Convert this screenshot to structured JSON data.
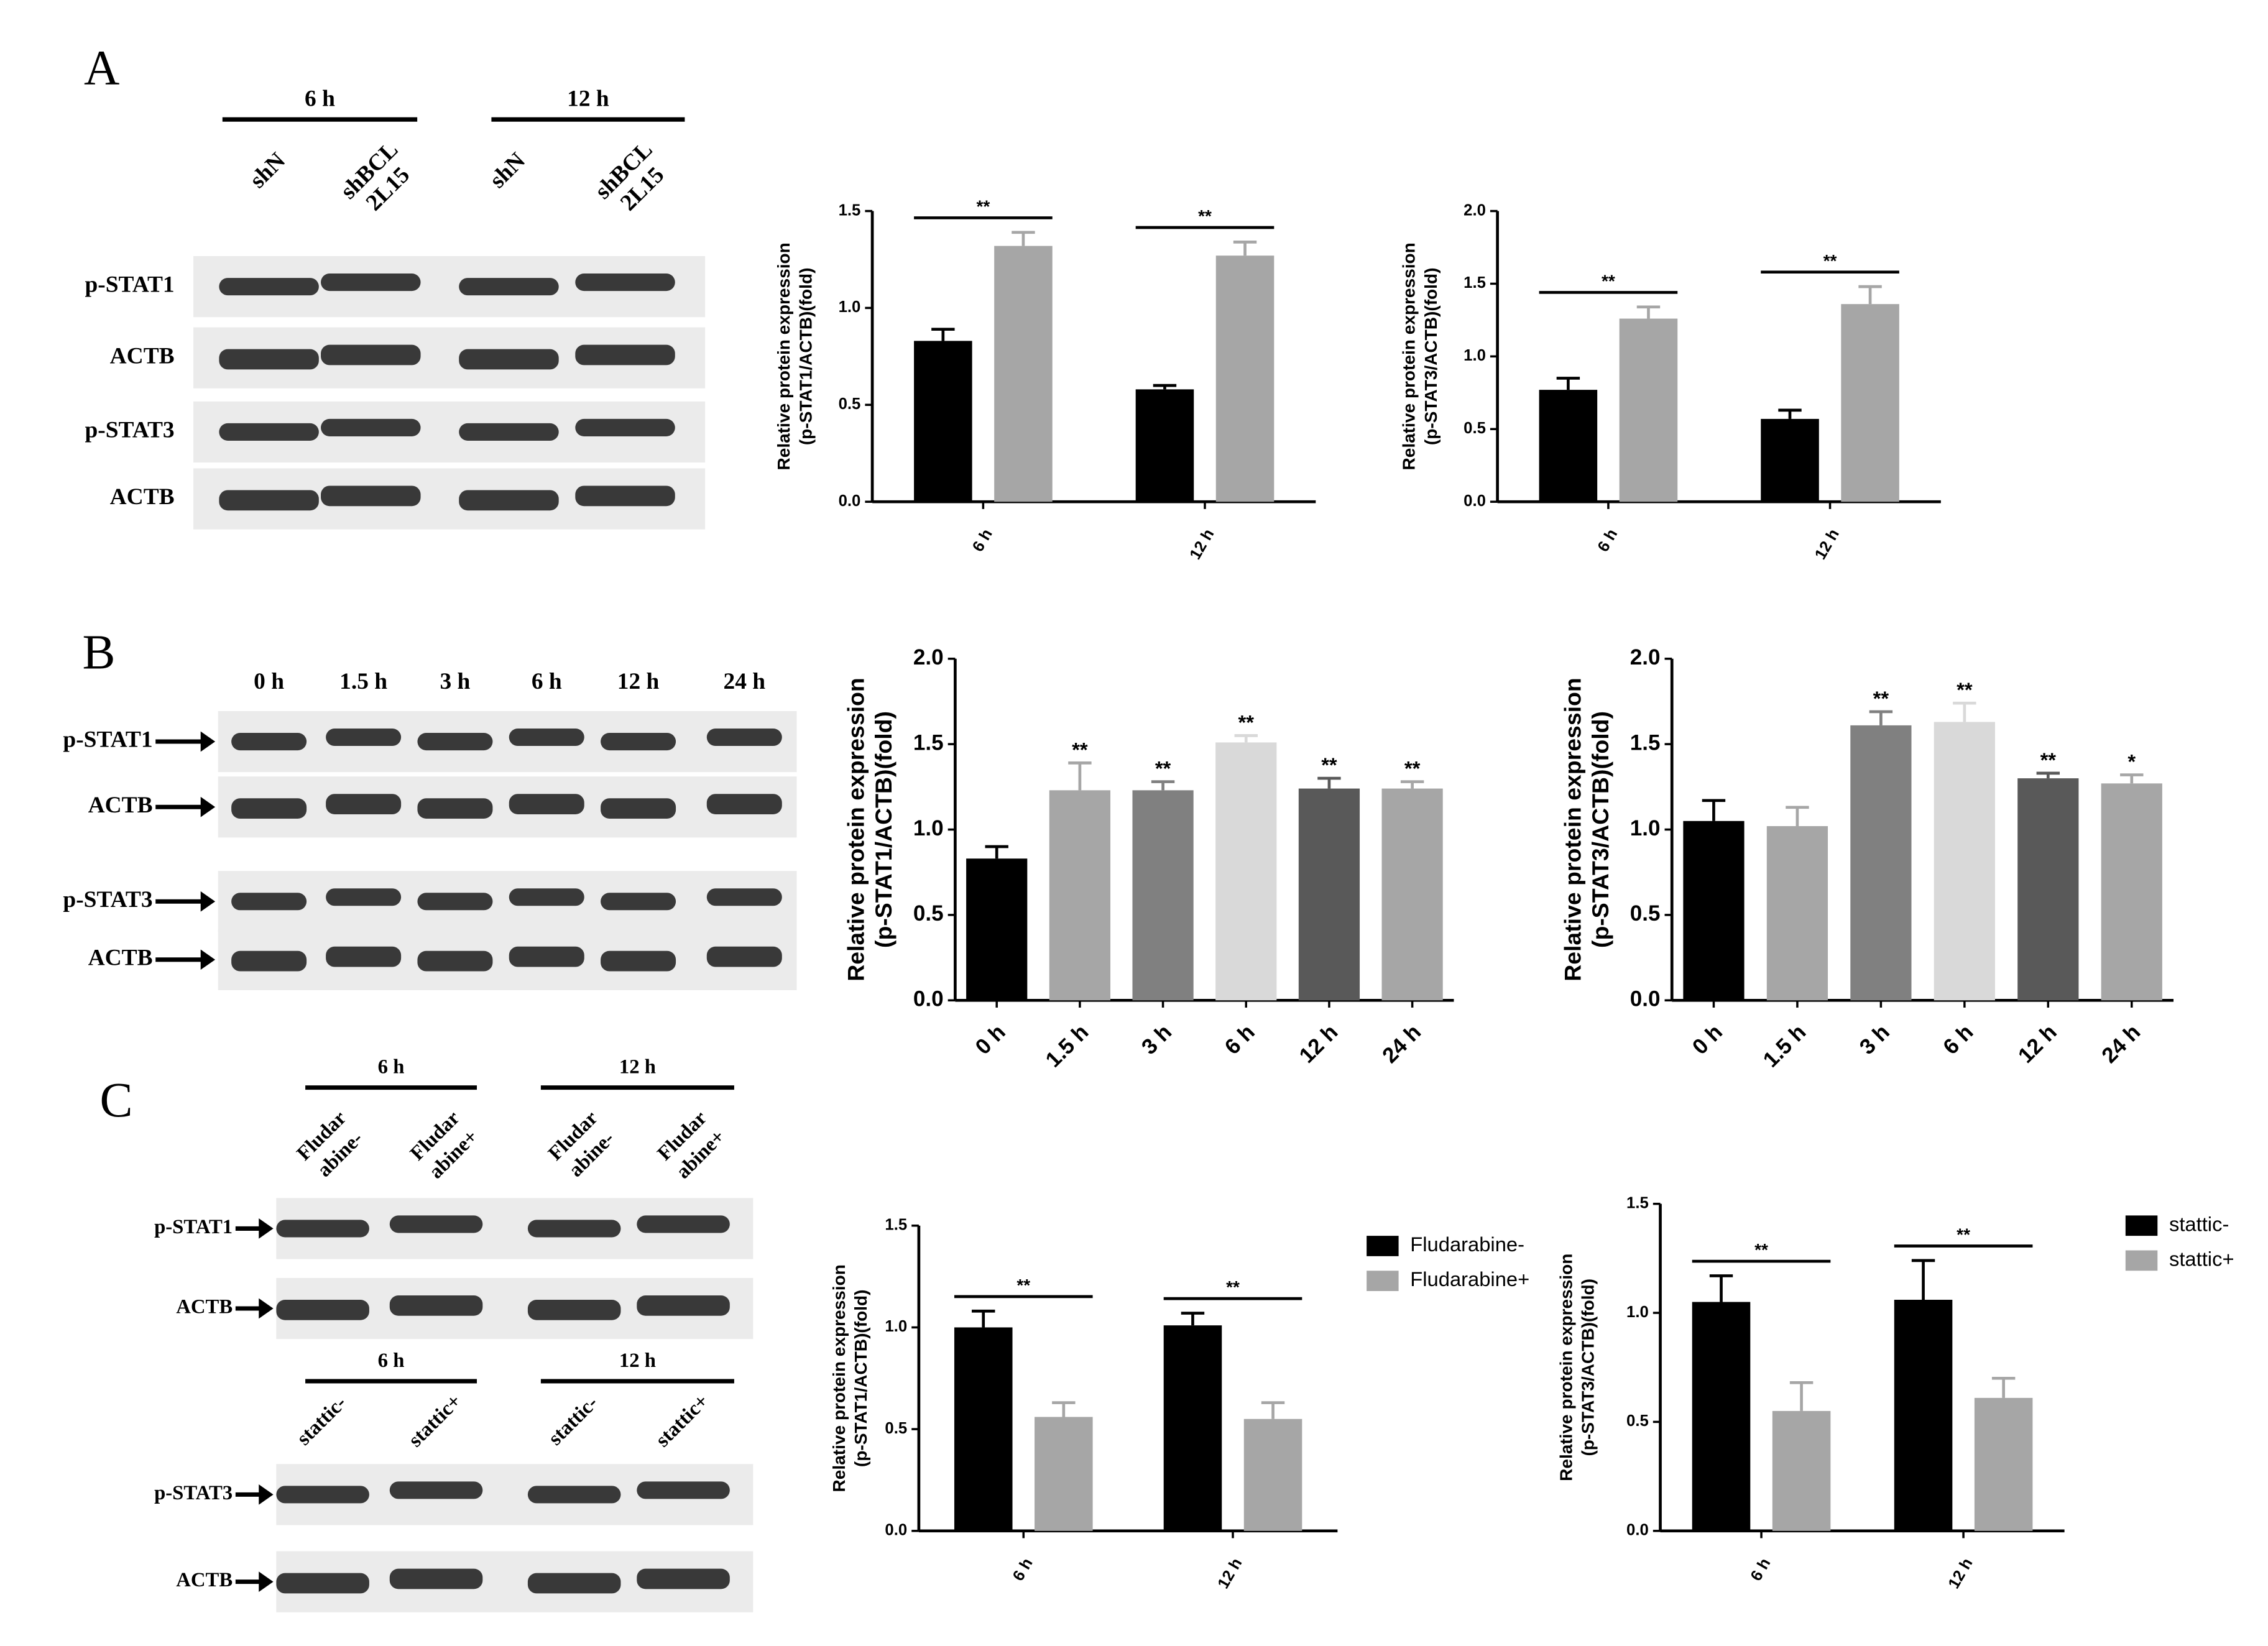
{
  "panel_labels": [
    "A",
    "B",
    "C"
  ],
  "blots": [
    {
      "groups": [
        "6 h",
        "12 h"
      ],
      "lanes": [
        [
          "shN"
        ],
        [
          "shBCL",
          "2L15"
        ],
        [
          "shN"
        ],
        [
          "shBCL",
          "2L15"
        ]
      ],
      "rows": [
        "p-STAT1",
        "ACTB",
        "p-STAT3",
        "ACTB"
      ]
    },
    {
      "lanes": [
        [
          "0 h"
        ],
        [
          "1.5 h"
        ],
        [
          "3 h"
        ],
        [
          "6 h"
        ],
        [
          "12 h"
        ],
        [
          "24 h"
        ]
      ],
      "rows": [
        "p-STAT1",
        "ACTB",
        "p-STAT3",
        "ACTB"
      ]
    },
    {
      "groups": [
        "6 h",
        "12 h"
      ],
      "lanes": [
        [
          "Fludar",
          "abine-"
        ],
        [
          "Fludar",
          "abine+"
        ],
        [
          "Fludar",
          "abine-"
        ],
        [
          "Fludar",
          "abine+"
        ]
      ],
      "rows": [
        "p-STAT1",
        "ACTB"
      ]
    },
    {
      "groups": [
        "6 h",
        "12 h"
      ],
      "lanes": [
        [
          "stattic-"
        ],
        [
          "stattic+"
        ],
        [
          "stattic-"
        ],
        [
          "stattic+"
        ]
      ],
      "rows": [
        "p-STAT3",
        "ACTB"
      ]
    }
  ],
  "chart_data": [
    {
      "type": "bar",
      "ylabel": [
        "Relative protein expression",
        "(p-STAT1/ACTB)(fold)"
      ],
      "categories": [
        "6 h",
        "12 h"
      ],
      "series": [
        {
          "color": "#000000",
          "values": [
            0.83,
            0.58
          ],
          "errors": [
            0.06,
            0.02
          ]
        },
        {
          "color": "#a6a6a6",
          "values": [
            1.32,
            1.27
          ],
          "errors": [
            0.07,
            0.07
          ]
        }
      ],
      "ylim": [
        0,
        1.5
      ],
      "yticks": [
        {
          "value": 0,
          "label": "0.0"
        },
        0.5,
        {
          "value": 1,
          "label": "1.0"
        },
        1.5
      ],
      "annotations": [
        "**",
        "**"
      ]
    },
    {
      "type": "bar",
      "ylabel": [
        "Relative protein expression",
        "(p-STAT3/ACTB)(fold)"
      ],
      "categories": [
        "6 h",
        "12 h"
      ],
      "series": [
        {
          "color": "#000000",
          "values": [
            0.77,
            0.57
          ],
          "errors": [
            0.08,
            0.06
          ]
        },
        {
          "color": "#a6a6a6",
          "values": [
            1.26,
            1.36
          ],
          "errors": [
            0.08,
            0.12
          ]
        }
      ],
      "ylim": [
        0,
        2
      ],
      "yticks": [
        {
          "value": 0,
          "label": "0.0"
        },
        0.5,
        {
          "value": 1,
          "label": "1.0"
        },
        1.5,
        {
          "value": 2,
          "label": "2.0"
        }
      ],
      "annotations": [
        "**",
        "**"
      ]
    },
    {
      "type": "bar",
      "ylabel": [
        "Relative protein expression",
        "(p-STAT1/ACTB)(fold)"
      ],
      "categories": [
        "0 h",
        "1.5 h",
        "3 h",
        "6 h",
        "12 h",
        "24 h"
      ],
      "series": [
        {
          "colors": [
            "#000000",
            "#a6a6a6",
            "#808080",
            "#d9d9d9",
            "#595959",
            "#a6a6a6"
          ],
          "values": [
            0.83,
            1.23,
            1.23,
            1.51,
            1.24,
            1.24
          ],
          "errors": [
            0.07,
            0.16,
            0.05,
            0.04,
            0.06,
            0.04
          ]
        }
      ],
      "ylim": [
        0,
        2
      ],
      "yticks": [
        {
          "value": 0,
          "label": "0.0"
        },
        0.5,
        {
          "value": 1,
          "label": "1.0"
        },
        1.5,
        {
          "value": 2,
          "label": "2.0"
        }
      ],
      "annotations": [
        null,
        "**",
        "**",
        "**",
        "**",
        "**"
      ]
    },
    {
      "type": "bar",
      "ylabel": [
        "Relative protein expression",
        "(p-STAT3/ACTB)(fold)"
      ],
      "categories": [
        "0 h",
        "1.5 h",
        "3 h",
        "6 h",
        "12 h",
        "24 h"
      ],
      "series": [
        {
          "colors": [
            "#000000",
            "#a6a6a6",
            "#808080",
            "#d9d9d9",
            "#595959",
            "#a6a6a6"
          ],
          "values": [
            1.05,
            1.02,
            1.61,
            1.63,
            1.3,
            1.27
          ],
          "errors": [
            0.12,
            0.11,
            0.08,
            0.11,
            0.03,
            0.05
          ]
        }
      ],
      "ylim": [
        0,
        2
      ],
      "yticks": [
        {
          "value": 0,
          "label": "0.0"
        },
        0.5,
        {
          "value": 1,
          "label": "1.0"
        },
        1.5,
        {
          "value": 2,
          "label": "2.0"
        }
      ],
      "annotations": [
        null,
        null,
        "**",
        "**",
        "**",
        "*"
      ]
    },
    {
      "type": "bar",
      "ylabel": [
        "Relative protein expression",
        "(p-STAT1/ACTB)(fold)"
      ],
      "categories": [
        "6 h",
        "12 h"
      ],
      "series": [
        {
          "name": "Fludarabine-",
          "color": "#000000",
          "values": [
            1.0,
            1.01
          ],
          "errors": [
            0.08,
            0.06
          ]
        },
        {
          "name": "Fludarabine+",
          "color": "#a6a6a6",
          "values": [
            0.56,
            0.55
          ],
          "errors": [
            0.07,
            0.08
          ]
        }
      ],
      "ylim": [
        0,
        1.5
      ],
      "yticks": [
        {
          "value": 0,
          "label": "0.0"
        },
        0.5,
        {
          "value": 1,
          "label": "1.0"
        },
        1.5
      ],
      "annotations": [
        "**",
        "**"
      ]
    },
    {
      "type": "bar",
      "ylabel": [
        "Relative protein expression",
        "(p-STAT3/ACTB)(fold)"
      ],
      "categories": [
        "6 h",
        "12 h"
      ],
      "series": [
        {
          "name": "stattic-",
          "color": "#000000",
          "values": [
            1.05,
            1.06
          ],
          "errors": [
            0.12,
            0.18
          ]
        },
        {
          "name": "stattic+",
          "color": "#a6a6a6",
          "values": [
            0.55,
            0.61
          ],
          "errors": [
            0.13,
            0.09
          ]
        }
      ],
      "ylim": [
        0,
        1.5
      ],
      "yticks": [
        {
          "value": 0,
          "label": "0.0"
        },
        0.5,
        {
          "value": 1,
          "label": "1.0"
        },
        1.5
      ],
      "annotations": [
        "**",
        "**"
      ]
    }
  ]
}
